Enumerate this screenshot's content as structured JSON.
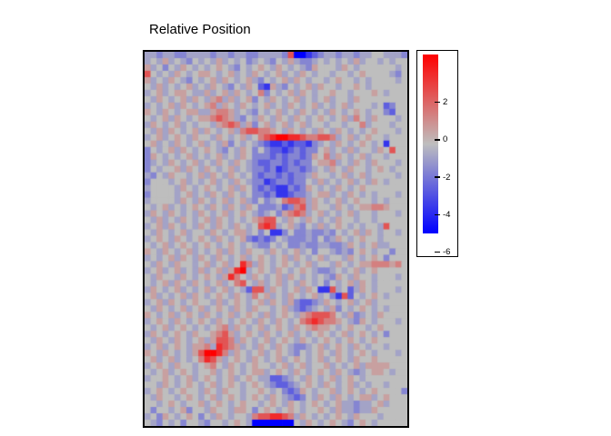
{
  "chart_data": {
    "type": "heatmap",
    "title": "Relative Position",
    "legend_position": "right",
    "colorbar": {
      "ticks": [
        2,
        0,
        -2,
        -4,
        -6
      ],
      "bar_value_top": 4.56,
      "bar_value_bottom": -5.0,
      "gradient_top_color": "#FF0000",
      "gradient_mid_color": "#BEBEBE",
      "gradient_bottom_color": "#0000FF"
    },
    "grid": {
      "cols": 44,
      "rows": 59,
      "vmax": 4.5,
      "vmin": -5.0,
      "colors": {
        "max": "#FF0000",
        "mid": "#BEBEBE",
        "min": "#0000FF"
      },
      "palette": {
        "0": 0,
        "1": 0.7,
        "2": 1.5,
        "3": 2.5,
        "4": 3.5,
        "5": 4.5,
        "a": -0.7,
        "b": -1.5,
        "c": -2.5,
        "d": -3.6,
        "e": -5.0
      },
      "rows_encoded": [
        "aabaabbaaaabaabaabbaaaab3eedcbaabaabaa00aaab",
        "a0a1a0ab0a0a1a0a0ba0ab0a1abba0a0a0a1a00a0a00",
        "1a0b0a10a0a010ab0a010a10a0ab1000a10a000000a0",
        "30a0a10a0110a01a0a10a01a0a10a00a00a010000ab0",
        "1a0a10ab0a01a10a01ab0a01a10a00a0100a0a0000a0",
        "0a1a0a01a0a10ab0a10cd1ab0a01a100a0010a000000",
        "a01a0110aa1a01a10a02b0a01a10a00100a00010a000",
        "0a10a01a10a12a1a01b0a10a01a0a01a00a100000000",
        "a0a01a10a012a10a10a01a0a10a01a0a01a000a0cb00",
        "10a10a011aa1221a0ab0a01a0a10a0a10a010a00bc00",
        "0a01a10a0112321ab0a10a10a10a010a01a20a1000a0",
        "a10a01a0a00a1232a1b01a01a01a00a00a002a000a00",
        "0a1a10a01a10a01a2332210a10a0a10a10a0a01000a0",
        "a01a010a100a10a01a02345544322332a01a0100a000",
        "01a0a10a01a0a1b0a0abcddcdccdba0a10a010a0d000",
        "b0a01a10a010ab0a10b0bccdcbcbb01a0a1a00a10300",
        "b10a0a01a0a01a0a10bbbcbcbbcb102a10a01a00a000",
        "ba0a10a01a0a10a10abccbbcbcbb0112a0a10a1000a0",
        "b0a001a10a10a01a0abbcbdcbbcba0a10a100a010a00",
        "ab0a100a01a10a10a0bcbbcbcbba100a01a01a0000a0",
        "b000a01a0a01a0a10abbdcbbcbb0a1a0a01a0a10a000",
        "a0000a10a010a01a10bcbcddbcb10a0a10a010000000",
        "b0000a01a0a10a10a0bbcbddcbba011a0a10a0a000a0",
        "a0000a10a10a01a01ab0ba02332a10a01a0100a0a000",
        "0a01a0a010a10a10a10bbbacb23a100a10a011221000",
        "a10a10a0a10a01a010aba0b1232a01a0a01a00a000a0",
        "0a1a0a10a01a10a0a012330a10a10a0a100a00a00000",
        "a01a10a0a10a10a10a0343a01ab0a1a010a0a00a3000",
        "0a10a01a00a10a011a0b0ddb0bbabbab0a01a10a00a0",
        "a010a10a010a10a01bcbcb0abbbab0ba10a0100a0000",
        "0a01a010a010a010a0abb0a0bbabbaabba10a01aa000",
        "10a10a01a0a01a10a100a10a01a0b00abab010a00b00",
        "a0a01a10a10a10a01a010a01a10a01a00a10a010b000",
        "0a10a100a01a01a042a10a010a01a00a10a011222120",
        "a01a01a0a1a01a145a010a10a010abba0a01a0100000",
        "0a100a10a010a1420a10a01a10a0a0ab10a100a000a0",
        "0a01a10a10a01a0230a1a01a0a10a0b0a01a10a00000",
        "a10a01a0a01a01a0ac33a10a01a10dd3a0ca10a000a0",
        "01a0a01a10a010a10a201a0a10a01a0bd3c0a010a000",
        "a01a10a0100a1a010a01a10a1bccba10a01a01a00000",
        "0a10a01a01a010a10a100a01abcba0a1b0a010a0a000",
        "10a01a010a10a01a010a1a010a1233320a1ba0a10000",
        "a010a10a010a10a010a10a10a023432210ab10a000a0",
        "0a01a010a0a012a10a01a010a1012110a0100a010000",
        "a10a010a1001231a010a10a01a0a010a01a010a0b000",
        "0a10a10a01a1332a10a01a010a10a010a010a0100000",
        "a01a010a112a4321a0a10a10abba01a010a10a00a000",
        "10a10a0a135542a10a01a010ab0a010a10a010a000a0",
        "01a01a0a02431a010a10a01a010a01a010a100100000",
        "a010a100a0120a10a0100a01a01a001a0a01a1111000",
        "0a01a010a001a010a011a010a10a010a10aba0110a00",
        "a0010a01a010a01a010aaccba0a10a01a010a0000000",
        "00a10a010a01a010a010abccba010a10a01a0a00a000",
        "a010a0100a10a100a0010a0bcb10a001a010a010000b",
        "0a100a010a01a010a010a10abcb0a10a10a011a01000",
        "00a010a001a010a0100a010a10a010a01aabaa01a000",
        "0b00a01b00a100a110b010a010a0010a1aabaa100000",
        "a0b10a010b0a10a00a2334432a10a0a010a1000a0000",
        "0ab0a0b00ab00a010aeeeeeee0a10a010ab010a00000"
      ]
    }
  }
}
